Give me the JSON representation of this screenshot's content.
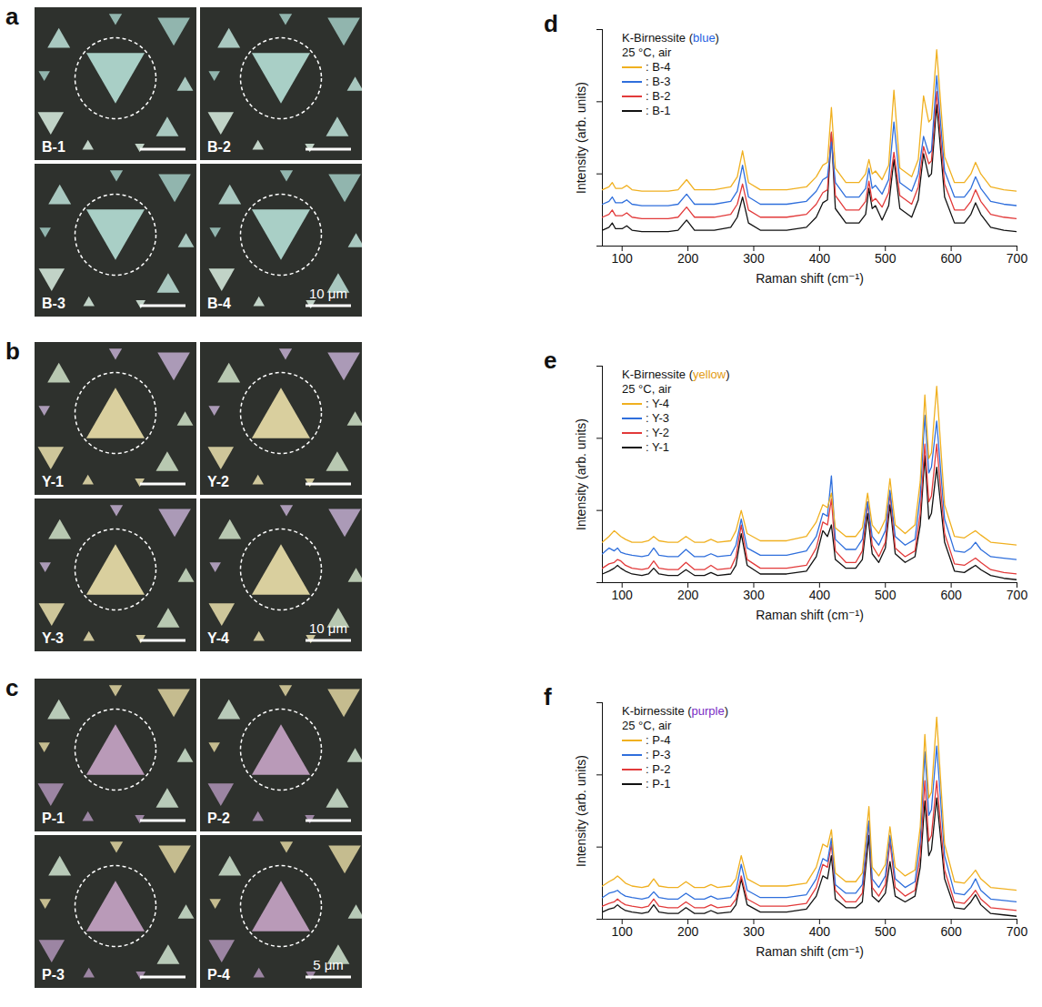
{
  "micrographs": [
    {
      "letter": "a",
      "images": [
        "B-1",
        "B-2",
        "B-3",
        "B-4"
      ],
      "scale_bar_label": "10 μm"
    },
    {
      "letter": "b",
      "images": [
        "Y-1",
        "Y-2",
        "Y-3",
        "Y-4"
      ],
      "scale_bar_label": "10 μm"
    },
    {
      "letter": "c",
      "images": [
        "P-1",
        "P-2",
        "P-3",
        "P-4"
      ],
      "scale_bar_label": "5 μm"
    }
  ],
  "chart_data": [
    {
      "panel_label": "d",
      "type": "line",
      "title": "K-Birnessite (blue)",
      "subtitle": "25 °C, air",
      "x_label": "Raman shift (cm⁻¹)",
      "y_label": "Intensity (arb. units)",
      "x": [
        70,
        80,
        85,
        90,
        100,
        107,
        115,
        130,
        150,
        170,
        185,
        198,
        210,
        240,
        265,
        275,
        283,
        292,
        310,
        350,
        380,
        395,
        405,
        412,
        418,
        424,
        440,
        460,
        470,
        475,
        480,
        485,
        495,
        505,
        513,
        522,
        540,
        550,
        558,
        566,
        570,
        578,
        590,
        605,
        620,
        630,
        637,
        645,
        660,
        680,
        700
      ],
      "series": [
        {
          "name": ": B-4",
          "color": "#f0b020",
          "values": [
            19.5,
            20.5,
            22,
            20,
            20,
            21,
            19.5,
            19,
            19,
            19,
            19.5,
            23,
            19.5,
            19.5,
            20.5,
            24,
            33,
            22,
            19.5,
            19.5,
            20.5,
            24,
            28,
            29,
            48,
            27,
            22,
            22,
            25,
            30,
            25,
            26,
            23,
            28,
            54,
            27,
            24,
            30,
            52,
            43,
            44,
            68,
            31,
            22,
            22,
            25,
            29,
            25,
            20.5,
            19.5,
            19
          ]
        },
        {
          "name": ": B-3",
          "color": "#2f6fdc",
          "values": [
            14.5,
            15.5,
            17,
            15,
            15,
            16,
            14.5,
            14,
            14,
            14,
            14.5,
            18,
            14.5,
            14.5,
            15.5,
            19,
            28,
            17,
            14.5,
            14.5,
            15.5,
            19,
            23,
            24,
            36,
            22,
            17,
            17,
            20,
            27,
            20,
            21,
            18,
            23,
            43,
            22,
            19,
            25,
            38,
            32,
            33,
            59,
            26,
            17,
            17,
            20,
            24,
            20,
            15.5,
            14.5,
            14
          ]
        },
        {
          "name": ": B-2",
          "color": "#e23a3a",
          "values": [
            10,
            11,
            12.5,
            10.5,
            10.5,
            11.5,
            10,
            9.5,
            9.5,
            9.5,
            10,
            13.5,
            10,
            10,
            11,
            14.5,
            21.5,
            12.5,
            10,
            10,
            11,
            14.5,
            18.5,
            19.5,
            39.5,
            17.5,
            12.5,
            12.5,
            15.5,
            22.5,
            15.5,
            16.5,
            13.5,
            18.5,
            32.5,
            17.5,
            14.5,
            20.5,
            34.5,
            28.5,
            29.5,
            53.5,
            21.5,
            12.5,
            12.5,
            15.5,
            19.5,
            15.5,
            11,
            10,
            9.5
          ]
        },
        {
          "name": ": B-1",
          "color": "#111111",
          "values": [
            5.5,
            6.5,
            8,
            6,
            6,
            7,
            5.5,
            5,
            5,
            5,
            5.5,
            9,
            5.5,
            5.5,
            6.5,
            10,
            17,
            8,
            5.5,
            5.5,
            6.5,
            10,
            15,
            16,
            39,
            13,
            8,
            8,
            11,
            20,
            13,
            14,
            9,
            14,
            30,
            13,
            10,
            16,
            32,
            24,
            25,
            49,
            17,
            8,
            8,
            11,
            15,
            11,
            6.5,
            5.5,
            5
          ]
        }
      ],
      "xlim": [
        70,
        700
      ],
      "xticks": [
        100,
        200,
        300,
        400,
        500,
        600,
        700
      ],
      "ylim": [
        0,
        75
      ],
      "yticks": [
        0,
        25,
        50,
        75
      ],
      "tick_labels": "x",
      "legend": "top-left"
    },
    {
      "panel_label": "e",
      "type": "line",
      "title": "K-Birnessite (yellow)",
      "subtitle": "25 °C, air",
      "x_label": "Raman shift (cm⁻¹)",
      "y_label": "Intensity (arb. units)",
      "x": [
        70,
        80,
        88,
        93,
        98,
        105,
        115,
        130,
        140,
        148,
        156,
        170,
        185,
        197,
        210,
        225,
        235,
        245,
        265,
        273,
        281,
        290,
        310,
        350,
        380,
        395,
        405,
        412,
        418,
        424,
        440,
        455,
        465,
        473,
        480,
        490,
        500,
        507,
        515,
        530,
        545,
        553,
        560,
        566,
        570,
        578,
        590,
        605,
        620,
        630,
        637,
        645,
        660,
        680,
        700
      ],
      "series": [
        {
          "name": ": Y-4",
          "color": "#f0b020",
          "values": [
            14,
            16,
            18,
            17,
            16,
            15,
            14,
            14,
            14.5,
            16,
            14.5,
            14,
            14,
            16,
            14,
            14,
            15,
            14,
            14.5,
            18,
            25,
            17,
            14.5,
            14.5,
            16,
            21,
            27,
            26,
            31,
            19,
            16,
            16,
            19,
            31,
            20,
            17,
            22,
            36,
            20,
            17,
            20,
            35,
            65,
            43,
            45,
            68,
            27,
            16,
            15.5,
            17,
            18,
            16.5,
            14,
            13.5,
            13
          ]
        },
        {
          "name": ": Y-3",
          "color": "#2f6fdc",
          "values": [
            10,
            12,
            11,
            12,
            10.5,
            10,
            9.5,
            9,
            9.5,
            12,
            9.5,
            9,
            9,
            11.5,
            9,
            9,
            10,
            9,
            9.5,
            13,
            22,
            12,
            9.5,
            9.5,
            11,
            16,
            24,
            23,
            37,
            15,
            11.5,
            11.5,
            15,
            28,
            16,
            13,
            18,
            32,
            16,
            13,
            15,
            30,
            58,
            38,
            40,
            56,
            22,
            11,
            10.5,
            12,
            14,
            11.5,
            9,
            8.5,
            8
          ]
        },
        {
          "name": ": Y-2",
          "color": "#e23a3a",
          "values": [
            5,
            6.5,
            7,
            8,
            7.5,
            6,
            5,
            4.5,
            5,
            7.5,
            5,
            4.5,
            4.5,
            7,
            4.5,
            4.5,
            6,
            4.5,
            5,
            9,
            20,
            8,
            5,
            5,
            6,
            12,
            21,
            20,
            29,
            11,
            7,
            7,
            11,
            28,
            13,
            9,
            14,
            31,
            12,
            9,
            11,
            24,
            48,
            28,
            30,
            48,
            17,
            6.5,
            6,
            7.5,
            8.5,
            7,
            4.5,
            3.5,
            3
          ]
        },
        {
          "name": ": Y-1",
          "color": "#111111",
          "values": [
            3,
            4,
            5,
            6,
            5,
            4,
            3,
            2.5,
            3,
            5,
            3,
            2.5,
            2.5,
            4.5,
            2.5,
            2.5,
            3.5,
            2.5,
            3,
            6,
            17,
            6,
            3,
            3,
            4,
            9,
            18,
            16,
            20,
            8,
            5,
            5,
            8,
            24,
            10,
            7,
            12,
            27,
            10,
            7,
            9,
            20,
            44,
            22,
            24,
            40,
            14,
            4,
            3.5,
            5,
            6,
            4.5,
            2.5,
            1.5,
            1
          ]
        }
      ],
      "xlim": [
        70,
        700
      ],
      "xticks": [
        100,
        200,
        300,
        400,
        500,
        600,
        700
      ],
      "ylim": [
        0,
        75
      ],
      "yticks": [
        0,
        25,
        50,
        75
      ],
      "tick_labels": "x",
      "legend": "top-left"
    },
    {
      "panel_label": "f",
      "type": "line",
      "title": "K-birnessite (purple)",
      "subtitle": "25 °C, air",
      "x_label": "Raman shift (cm⁻¹)",
      "y_label": "Intensity (arb. units)",
      "x": [
        70,
        80,
        88,
        93,
        98,
        105,
        115,
        130,
        140,
        148,
        156,
        170,
        185,
        197,
        210,
        225,
        235,
        245,
        265,
        273,
        281,
        290,
        310,
        350,
        380,
        395,
        405,
        412,
        418,
        424,
        440,
        455,
        465,
        475,
        480,
        490,
        500,
        507,
        515,
        530,
        545,
        553,
        560,
        566,
        570,
        578,
        590,
        605,
        620,
        630,
        637,
        645,
        660,
        680,
        700
      ],
      "series": [
        {
          "name": ": P-4",
          "color": "#f0b020",
          "values": [
            11.5,
            13,
            14,
            15,
            14,
            12.5,
            11.5,
            11,
            11.5,
            14,
            11.5,
            11,
            11,
            13,
            11,
            11,
            12,
            11,
            11.5,
            14,
            22,
            14,
            11.5,
            11.5,
            12.5,
            18,
            26,
            25,
            31,
            16,
            13,
            13,
            16,
            39,
            18,
            15,
            19,
            32,
            18,
            15,
            17,
            32,
            64,
            42,
            44,
            70,
            26,
            13,
            12.5,
            15,
            17,
            14,
            11,
            10.5,
            10
          ]
        },
        {
          "name": ": P-3",
          "color": "#2f6fdc",
          "values": [
            7.5,
            9,
            9.5,
            10,
            9,
            8,
            7.5,
            7,
            7.5,
            9.5,
            7.5,
            7,
            7,
            9,
            7,
            7,
            8,
            7,
            7.5,
            10,
            19,
            10,
            7.5,
            7.5,
            8.5,
            14,
            21,
            20,
            28,
            12,
            9,
            9,
            12,
            34,
            14,
            11,
            15,
            29,
            14,
            11,
            13,
            27,
            58,
            36,
            38,
            60,
            22,
            9,
            8.5,
            11,
            14,
            10,
            7,
            6.5,
            6
          ]
        },
        {
          "name": ": P-2",
          "color": "#e23a3a",
          "values": [
            4.5,
            5.5,
            6,
            7,
            6,
            5,
            4.5,
            4,
            4.5,
            7,
            4.5,
            4,
            4,
            6,
            4,
            4,
            5,
            4,
            4.5,
            7,
            15,
            7,
            4.5,
            4.5,
            5.5,
            11,
            19,
            18,
            26,
            10,
            6,
            6,
            9,
            34,
            11,
            8,
            12,
            27,
            11,
            8,
            10,
            22,
            48,
            27,
            29,
            48,
            17,
            6,
            5.5,
            8,
            10,
            7,
            4,
            3.5,
            3
          ]
        },
        {
          "name": ": P-1",
          "color": "#111111",
          "values": [
            2.5,
            3.5,
            4,
            5,
            4,
            3,
            2.5,
            2,
            2.5,
            5,
            2.5,
            2,
            2,
            4,
            2,
            2,
            3,
            2,
            2.5,
            5,
            14,
            5,
            2.5,
            2.5,
            3.5,
            8,
            15,
            14,
            22,
            7,
            4,
            4,
            6,
            29,
            8,
            6,
            9,
            20,
            8,
            6,
            8,
            18,
            41,
            22,
            24,
            42,
            14,
            4,
            3.5,
            6,
            8.5,
            5,
            2,
            1.5,
            1
          ]
        }
      ],
      "xlim": [
        70,
        700
      ],
      "xticks": [
        100,
        200,
        300,
        400,
        500,
        600,
        700
      ],
      "ylim": [
        0,
        75
      ],
      "yticks": [
        0,
        25,
        50,
        75
      ],
      "tick_labels": "x",
      "legend": "top-left"
    }
  ]
}
